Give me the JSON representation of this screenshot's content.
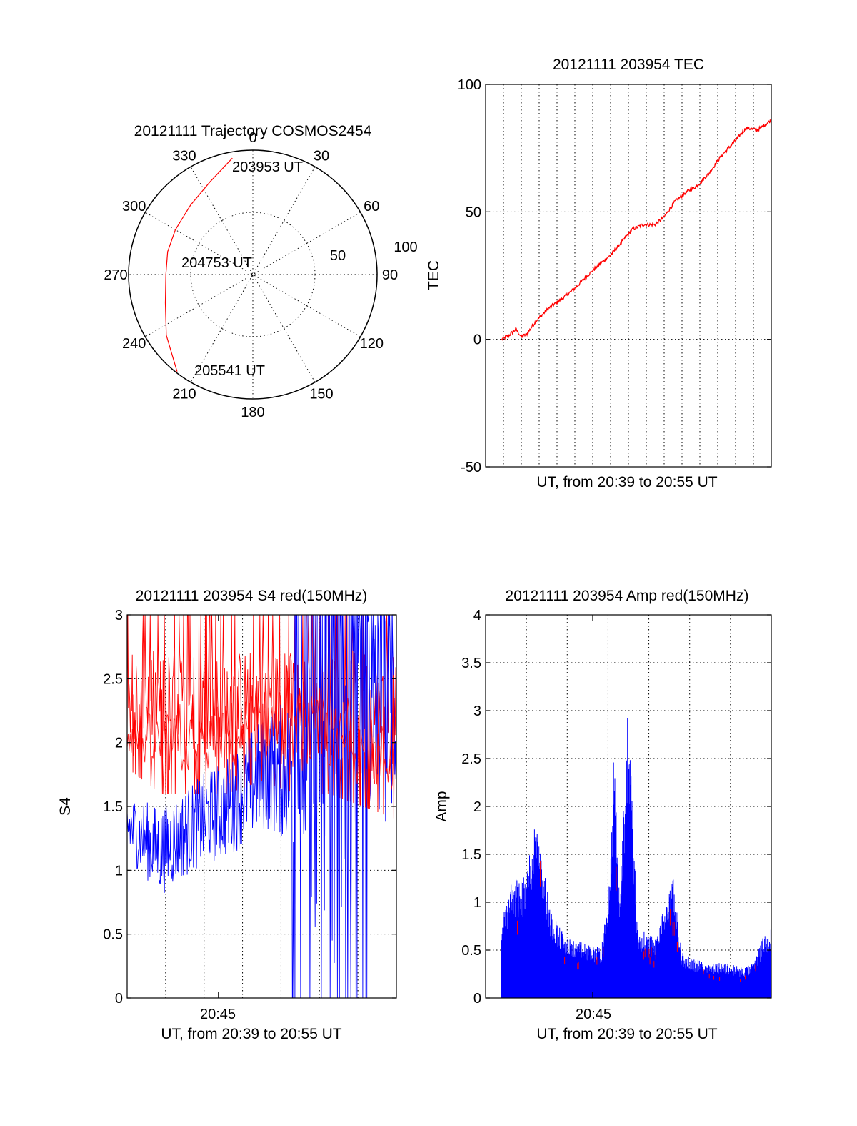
{
  "chart_data": [
    {
      "type": "polar",
      "title": "20121111 Trajectory COSMOS2454",
      "angle_labels": [
        "0",
        "30",
        "60",
        "90",
        "120",
        "150",
        "180",
        "210",
        "240",
        "270",
        "300",
        "330"
      ],
      "radius_labels": [
        "50",
        "100"
      ],
      "center_label": "204753 UT",
      "start_label": "203953 UT",
      "end_label": "205541 UT",
      "series_color": "#ff0000",
      "trajectory": [
        {
          "azimuth": 350,
          "zenith": 95
        },
        {
          "azimuth": 335,
          "zenith": 82
        },
        {
          "azimuth": 318,
          "zenith": 75
        },
        {
          "azimuth": 300,
          "zenith": 72
        },
        {
          "azimuth": 285,
          "zenith": 71
        },
        {
          "azimuth": 270,
          "zenith": 70
        },
        {
          "azimuth": 252,
          "zenith": 74
        },
        {
          "azimuth": 235,
          "zenith": 85
        },
        {
          "azimuth": 218,
          "zenith": 99
        }
      ]
    },
    {
      "type": "line",
      "title": "20121111 203954 TEC",
      "ylabel": "TEC",
      "xlabel": "UT, from 20:39 to 20:55 UT",
      "ylim": [
        -50,
        100
      ],
      "yticks": [
        "100",
        "50",
        "0",
        "-50"
      ],
      "xlim": [
        0,
        16
      ],
      "series_color": "#ff0000",
      "series": [
        {
          "x": [
            0.9,
            1.3,
            1.7,
            2.0,
            2.3,
            2.8,
            3.5,
            4.3,
            5.0,
            5.7,
            6.3,
            7.0,
            7.6,
            8.2,
            8.8,
            9.5,
            10.0,
            10.6,
            11.3,
            11.8,
            12.5,
            13.2,
            14.0,
            14.6,
            15.2,
            16.0
          ],
          "y": [
            0,
            1.5,
            4,
            1,
            2,
            7,
            12,
            16,
            20,
            25,
            29,
            33,
            38,
            43,
            45,
            45,
            48,
            54,
            58,
            60,
            65,
            72,
            78,
            83,
            82,
            86
          ]
        }
      ]
    },
    {
      "type": "line",
      "title": "20121111 203954 S4 red(150MHz)",
      "ylabel": "S4",
      "xlabel": "UT, from 20:39 to 20:55 UT",
      "ylim": [
        0,
        3
      ],
      "yticks": [
        "3",
        "2.5",
        "2",
        "1.5",
        "1",
        "0.5",
        "0"
      ],
      "xtick_label": "20:45",
      "xlim": [
        0,
        16
      ],
      "series_colors": [
        "#ff0000",
        "#0000ff"
      ],
      "red_envelope": {
        "x": [
          0,
          2,
          4,
          6,
          8,
          10,
          12,
          14,
          16
        ],
        "low": [
          1.8,
          1.6,
          1.6,
          1.6,
          1.7,
          1.6,
          1.6,
          1.5,
          1.4
        ],
        "high": [
          3,
          3,
          3,
          3,
          3,
          3,
          3,
          3,
          3
        ]
      },
      "blue_envelope": {
        "x": [
          0,
          2,
          4,
          6,
          8,
          10,
          12,
          14,
          16
        ],
        "low": [
          1.1,
          0.8,
          1.0,
          1.1,
          1.3,
          1.2,
          0.0,
          1.3,
          1.4
        ],
        "high": [
          1.6,
          1.5,
          1.7,
          1.9,
          2.2,
          2.4,
          3.0,
          3.0,
          3.0
        ]
      }
    },
    {
      "type": "bar",
      "title": "20121111 203954 Amp red(150MHz)",
      "ylabel": "Amp",
      "xlabel": "UT, from 20:39 to 20:55 UT",
      "ylim": [
        0,
        4
      ],
      "yticks": [
        "4",
        "3.5",
        "3",
        "2.5",
        "2",
        "1.5",
        "1",
        "0.5",
        "0"
      ],
      "xtick_label": "20:45",
      "xlim": [
        0,
        16
      ],
      "series_colors": [
        "#0000ff",
        "#ff0000"
      ],
      "envelope": {
        "x": [
          0.9,
          1.5,
          2.2,
          2.9,
          3.3,
          3.6,
          4.5,
          5.5,
          6.5,
          7.0,
          7.2,
          7.5,
          8.0,
          8.5,
          9.5,
          10.5,
          11.0,
          11.5,
          12.5,
          13.5,
          14.5,
          15.0,
          15.5,
          16.0
        ],
        "y": [
          0.8,
          1.2,
          1.2,
          1.9,
          1.3,
          0.9,
          0.6,
          0.55,
          0.5,
          1.3,
          2.6,
          1.0,
          3.05,
          0.7,
          0.6,
          1.2,
          0.45,
          0.4,
          0.35,
          0.35,
          0.3,
          0.35,
          0.6,
          0.7
        ]
      }
    }
  ]
}
